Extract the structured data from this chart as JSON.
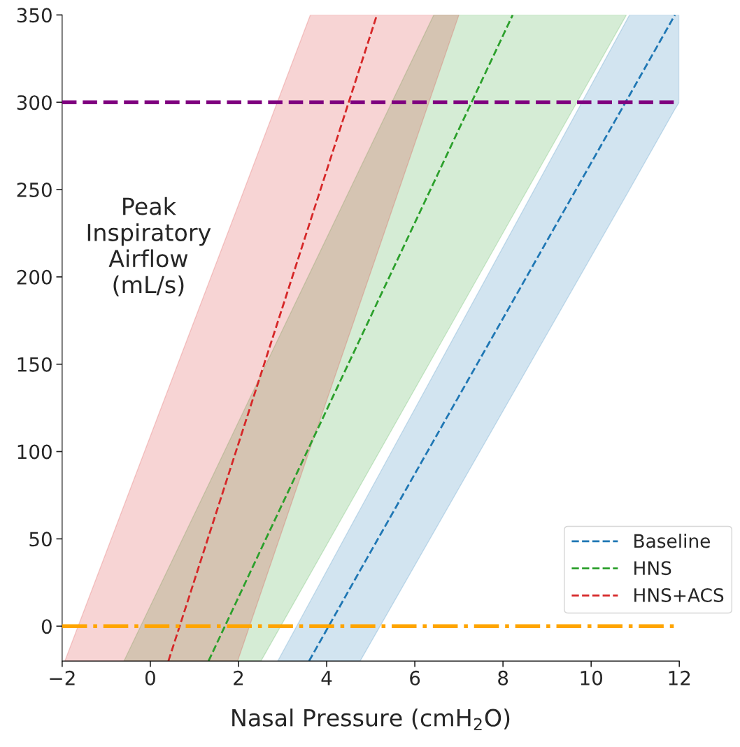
{
  "chart_data": {
    "type": "line",
    "xlabel": "Nasal Pressure (cmH$_{2}$O)",
    "ylabel": "Peak\nInspiratory\nAirflow\n(mL/s)",
    "series": [
      {
        "name": "Baseline",
        "color": "#1f77b4",
        "x": [
          2.89,
          3.6,
          4.76,
          10.87,
          11.9,
          12
        ],
        "values": [
          null,
          -20,
          32,
          304,
          350,
          null
        ],
        "lower": [
          -20,
          -20,
          -20,
          250,
          296,
          300
        ],
        "upper": [
          -20,
          13,
          67,
          350,
          350,
          350
        ]
      },
      {
        "name": "HNS",
        "color": "#2ca02c",
        "x": [
          -0.6,
          1.32,
          2.51,
          6.43,
          8.22,
          10.8
        ],
        "values": [
          null,
          -20,
          44,
          254,
          350,
          null
        ],
        "lower": [
          -20,
          -20,
          -20,
          155,
          235,
          350
        ],
        "upper": [
          -20,
          81,
          144,
          350,
          350,
          350
        ]
      },
      {
        "name": "HNS+ACS",
        "color": "#d62728",
        "x": [
          -1.94,
          0.41,
          1.98,
          3.63,
          5.14,
          7.0
        ],
        "values": [
          null,
          -20,
          103,
          232,
          350,
          null
        ],
        "lower": [
          -20,
          -20,
          -20,
          102,
          213,
          350
        ],
        "upper": [
          -20,
          136,
          240,
          350,
          350,
          350
        ]
      }
    ],
    "ref_lines": [
      {
        "axis": "y",
        "value": 300,
        "color": "#800080",
        "line_style": "dashed"
      },
      {
        "axis": "y",
        "value": 0,
        "color": "#ffa500",
        "line_style": "dashdot"
      }
    ],
    "xlim": [
      -2,
      12
    ],
    "xticks": [
      {
        "value": -2,
        "label": "−2"
      },
      0,
      2,
      4,
      6,
      8,
      10,
      12
    ],
    "ylim": [
      -20,
      350
    ],
    "yticks": [
      0,
      50,
      100,
      150,
      200,
      250,
      300,
      350
    ],
    "line_style": "dashed",
    "marker": "none",
    "grid": false,
    "legend": "bottom right"
  }
}
